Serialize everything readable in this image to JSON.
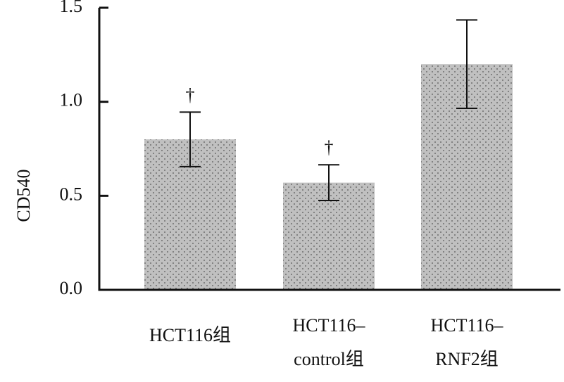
{
  "chart_data": {
    "type": "bar",
    "ylabel": "CD540",
    "ylim": [
      0,
      1.5
    ],
    "yticks": [
      "0.0",
      "0.5",
      "1.0",
      "1.5"
    ],
    "ytick_values": [
      0,
      0.5,
      1.0,
      1.5
    ],
    "categories": [
      [
        "HCT116组"
      ],
      [
        "HCT116–",
        "control组"
      ],
      [
        "HCT116–",
        "RNF2组"
      ]
    ],
    "values": [
      0.8,
      0.57,
      1.2
    ],
    "errors": [
      0.145,
      0.095,
      0.235
    ],
    "significance": [
      "†",
      "†",
      ""
    ],
    "bar_color": "#c0c0c0",
    "dot_color": "#555555",
    "grid": false
  }
}
